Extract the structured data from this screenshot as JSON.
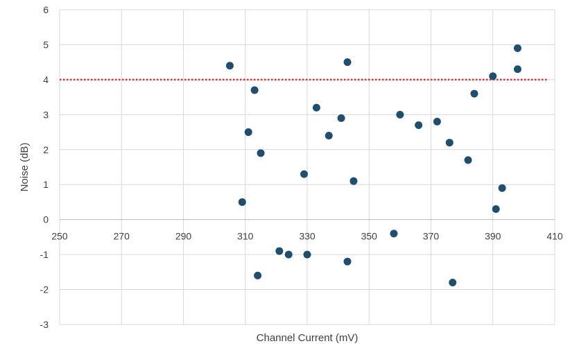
{
  "chart_data": {
    "type": "scatter",
    "title": "",
    "xlabel": "Channel Current (mV)",
    "ylabel": "Noise (dB)",
    "xlim": [
      250,
      410
    ],
    "ylim": [
      -3,
      6
    ],
    "x_ticks": [
      250,
      270,
      290,
      310,
      330,
      350,
      370,
      390,
      410
    ],
    "y_ticks": [
      -3,
      -2,
      -1,
      0,
      1,
      2,
      3,
      4,
      5,
      6
    ],
    "grid": true,
    "legend": "none",
    "series": [
      {
        "color": "#1f4e6e",
        "points": [
          {
            "x": 305,
            "y": 4.4
          },
          {
            "x": 309,
            "y": 0.5
          },
          {
            "x": 311,
            "y": 2.5
          },
          {
            "x": 313,
            "y": 3.7
          },
          {
            "x": 314,
            "y": -1.6
          },
          {
            "x": 315,
            "y": 1.9
          },
          {
            "x": 321,
            "y": -0.9
          },
          {
            "x": 324,
            "y": -1.0
          },
          {
            "x": 329,
            "y": 1.3
          },
          {
            "x": 330,
            "y": -1.0
          },
          {
            "x": 333,
            "y": 3.2
          },
          {
            "x": 337,
            "y": 2.4
          },
          {
            "x": 341,
            "y": 2.9
          },
          {
            "x": 343,
            "y": 4.5
          },
          {
            "x": 343,
            "y": -1.2
          },
          {
            "x": 345,
            "y": 1.1
          },
          {
            "x": 358,
            "y": -0.4
          },
          {
            "x": 360,
            "y": 3.0
          },
          {
            "x": 366,
            "y": 2.7
          },
          {
            "x": 372,
            "y": 2.8
          },
          {
            "x": 376,
            "y": 2.2
          },
          {
            "x": 377,
            "y": -1.8
          },
          {
            "x": 382,
            "y": 1.7
          },
          {
            "x": 384,
            "y": 3.6
          },
          {
            "x": 390,
            "y": 4.1
          },
          {
            "x": 391,
            "y": 0.3
          },
          {
            "x": 393,
            "y": 0.9
          },
          {
            "x": 398,
            "y": 4.9
          },
          {
            "x": 398,
            "y": 4.3
          }
        ]
      }
    ],
    "reference_line": {
      "y": 4,
      "x_from": 250,
      "x_to": 408,
      "style": "dotted",
      "color": "#e03030"
    }
  }
}
